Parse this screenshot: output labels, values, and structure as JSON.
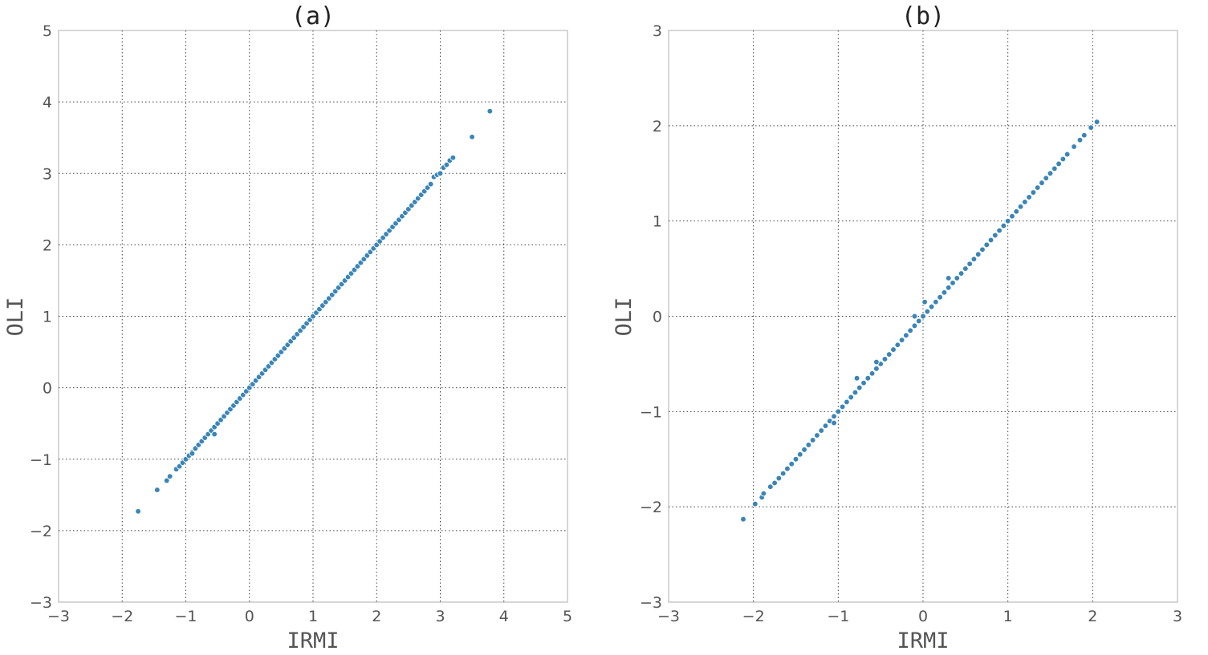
{
  "chart_data": [
    {
      "type": "scatter",
      "title": "(a)",
      "xlabel": "IRMI",
      "ylabel": "OLI",
      "xlim": [
        -3,
        5
      ],
      "ylim": [
        -3,
        5
      ],
      "xticks": [
        -3,
        -2,
        -1,
        0,
        1,
        2,
        3,
        4,
        5
      ],
      "yticks": [
        -3,
        -2,
        -1,
        0,
        1,
        2,
        3,
        4,
        5
      ],
      "grid": true,
      "color": "#3a85b8",
      "points": {
        "x": [
          -1.75,
          -1.45,
          -1.3,
          -1.25,
          -1.15,
          -1.1,
          -1.05,
          -1.0,
          -0.95,
          -0.9,
          -0.85,
          -0.8,
          -0.75,
          -0.7,
          -0.65,
          -0.6,
          -0.55,
          -0.5,
          -0.45,
          -0.4,
          -0.35,
          -0.3,
          -0.25,
          -0.2,
          -0.15,
          -0.1,
          -0.05,
          0.0,
          0.05,
          0.1,
          0.15,
          0.2,
          0.25,
          0.3,
          0.35,
          0.4,
          0.45,
          0.5,
          0.55,
          0.6,
          0.65,
          0.7,
          0.75,
          0.8,
          0.85,
          0.9,
          0.95,
          1.0,
          1.05,
          1.1,
          1.15,
          1.2,
          1.25,
          1.3,
          1.35,
          1.4,
          1.45,
          1.5,
          1.55,
          1.6,
          1.65,
          1.7,
          1.75,
          1.8,
          1.85,
          1.9,
          1.95,
          2.0,
          2.05,
          2.1,
          2.15,
          2.2,
          2.25,
          2.3,
          2.35,
          2.4,
          2.45,
          2.5,
          2.55,
          2.6,
          2.65,
          2.7,
          2.75,
          2.8,
          2.85,
          2.9,
          2.95,
          3.0,
          3.05,
          3.1,
          3.15,
          3.2,
          3.5,
          3.78,
          -0.55,
          -0.9
        ],
        "y": [
          -1.73,
          -1.43,
          -1.3,
          -1.24,
          -1.14,
          -1.1,
          -1.05,
          -1.0,
          -0.95,
          -0.9,
          -0.85,
          -0.8,
          -0.75,
          -0.7,
          -0.65,
          -0.6,
          -0.55,
          -0.5,
          -0.45,
          -0.4,
          -0.35,
          -0.3,
          -0.25,
          -0.2,
          -0.15,
          -0.1,
          -0.05,
          0.0,
          0.05,
          0.1,
          0.15,
          0.2,
          0.25,
          0.3,
          0.35,
          0.4,
          0.45,
          0.5,
          0.55,
          0.6,
          0.65,
          0.7,
          0.75,
          0.8,
          0.85,
          0.9,
          0.95,
          1.0,
          1.05,
          1.1,
          1.15,
          1.2,
          1.25,
          1.3,
          1.35,
          1.4,
          1.45,
          1.5,
          1.55,
          1.6,
          1.65,
          1.7,
          1.75,
          1.8,
          1.85,
          1.9,
          1.95,
          2.0,
          2.05,
          2.1,
          2.15,
          2.2,
          2.25,
          2.3,
          2.35,
          2.4,
          2.45,
          2.5,
          2.55,
          2.6,
          2.65,
          2.7,
          2.75,
          2.8,
          2.85,
          2.95,
          2.98,
          3.0,
          3.08,
          3.12,
          3.18,
          3.22,
          3.51,
          3.87,
          -0.65,
          -0.92
        ]
      }
    },
    {
      "type": "scatter",
      "title": "(b)",
      "xlabel": "IRMI",
      "ylabel": "OLI",
      "xlim": [
        -3,
        3
      ],
      "ylim": [
        -3,
        3
      ],
      "xticks": [
        -3,
        -2,
        -1,
        0,
        1,
        2,
        3
      ],
      "yticks": [
        -3,
        -2,
        -1,
        0,
        1,
        2,
        3
      ],
      "grid": true,
      "color": "#3a85b8",
      "points": {
        "x": [
          -2.12,
          -1.98,
          -1.9,
          -1.88,
          -1.8,
          -1.75,
          -1.7,
          -1.65,
          -1.6,
          -1.55,
          -1.5,
          -1.45,
          -1.4,
          -1.35,
          -1.3,
          -1.25,
          -1.2,
          -1.15,
          -1.1,
          -1.05,
          -1.0,
          -0.95,
          -0.9,
          -0.85,
          -0.8,
          -0.75,
          -0.7,
          -0.65,
          -0.6,
          -0.55,
          -0.5,
          -0.45,
          -0.4,
          -0.35,
          -0.3,
          -0.25,
          -0.2,
          -0.15,
          -0.1,
          -0.05,
          0.0,
          0.05,
          0.1,
          0.15,
          0.2,
          0.25,
          0.3,
          0.35,
          0.4,
          0.45,
          0.5,
          0.55,
          0.6,
          0.65,
          0.7,
          0.75,
          0.8,
          0.85,
          0.9,
          0.95,
          1.0,
          1.05,
          1.1,
          1.15,
          1.2,
          1.25,
          1.3,
          1.35,
          1.4,
          1.45,
          1.5,
          1.55,
          1.6,
          1.65,
          1.7,
          1.78,
          1.85,
          1.9,
          1.98,
          2.05,
          -0.78,
          -0.1,
          0.02,
          -1.05,
          -0.55,
          0.3
        ],
        "y": [
          -2.13,
          -1.97,
          -1.9,
          -1.86,
          -1.79,
          -1.75,
          -1.7,
          -1.65,
          -1.6,
          -1.55,
          -1.5,
          -1.45,
          -1.4,
          -1.35,
          -1.3,
          -1.25,
          -1.2,
          -1.15,
          -1.1,
          -1.05,
          -1.0,
          -0.95,
          -0.9,
          -0.85,
          -0.8,
          -0.75,
          -0.7,
          -0.65,
          -0.6,
          -0.55,
          -0.5,
          -0.45,
          -0.4,
          -0.35,
          -0.3,
          -0.25,
          -0.2,
          -0.15,
          -0.1,
          -0.05,
          0.0,
          0.05,
          0.1,
          0.15,
          0.2,
          0.25,
          0.3,
          0.35,
          0.4,
          0.45,
          0.5,
          0.55,
          0.6,
          0.65,
          0.7,
          0.75,
          0.8,
          0.85,
          0.9,
          0.95,
          1.0,
          1.05,
          1.1,
          1.15,
          1.2,
          1.25,
          1.3,
          1.35,
          1.4,
          1.45,
          1.5,
          1.55,
          1.6,
          1.65,
          1.7,
          1.78,
          1.85,
          1.9,
          1.98,
          2.04,
          -0.65,
          0.0,
          0.15,
          -1.12,
          -0.48,
          0.4
        ]
      }
    }
  ]
}
